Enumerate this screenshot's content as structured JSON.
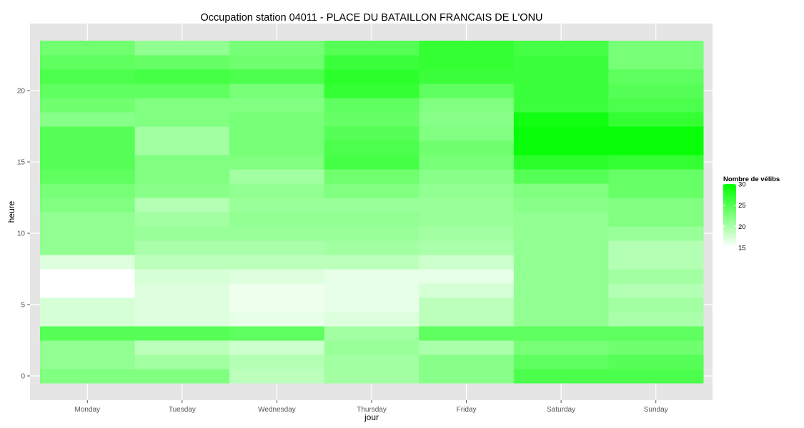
{
  "chart_data": {
    "type": "heatmap",
    "title": "Occupation station 04011 - PLACE DU BATAILLON FRANCAIS DE L'ONU",
    "xlabel": "jour",
    "ylabel": "heure",
    "categories": [
      "Monday",
      "Tuesday",
      "Wednesday",
      "Thursday",
      "Friday",
      "Saturday",
      "Sunday"
    ],
    "hours": [
      0,
      1,
      2,
      3,
      4,
      5,
      6,
      7,
      8,
      9,
      10,
      11,
      12,
      13,
      14,
      15,
      16,
      17,
      18,
      19,
      20,
      21,
      22,
      23
    ],
    "ylim": [
      -0.5,
      23.5
    ],
    "y_ticks": [
      0,
      5,
      10,
      15,
      20
    ],
    "grid": true,
    "legend": {
      "title": "Nombre de vélibs",
      "position": "right",
      "min": 15,
      "max": 30,
      "ticks": [
        15,
        20,
        25,
        30
      ],
      "low_color": "#ffffff",
      "high_color": "#00ff00"
    },
    "values": [
      [
        22.5,
        22.5,
        19.0,
        20.5,
        22.0,
        25.5,
        25.5
      ],
      [
        21.5,
        20.5,
        19.5,
        20.5,
        22.0,
        24.5,
        25.0
      ],
      [
        21.5,
        19.0,
        18.0,
        21.0,
        20.0,
        23.0,
        23.5
      ],
      [
        25.0,
        25.0,
        24.5,
        20.5,
        24.5,
        24.5,
        24.5
      ],
      [
        17.5,
        17.0,
        16.5,
        17.0,
        19.0,
        21.5,
        20.0
      ],
      [
        17.5,
        17.0,
        16.0,
        16.5,
        19.0,
        21.5,
        20.5
      ],
      [
        15.0,
        17.0,
        16.0,
        16.5,
        17.5,
        21.5,
        19.5
      ],
      [
        15.0,
        17.5,
        17.0,
        16.5,
        16.5,
        21.5,
        20.5
      ],
      [
        17.0,
        19.0,
        19.0,
        19.0,
        18.0,
        21.5,
        19.5
      ],
      [
        21.5,
        20.0,
        20.0,
        20.5,
        20.0,
        21.5,
        19.5
      ],
      [
        21.5,
        21.0,
        21.0,
        21.0,
        20.5,
        21.5,
        21.0
      ],
      [
        21.5,
        20.5,
        21.5,
        21.5,
        21.0,
        21.5,
        22.5
      ],
      [
        22.5,
        19.5,
        21.0,
        21.0,
        21.0,
        22.0,
        22.5
      ],
      [
        23.0,
        22.0,
        21.5,
        22.5,
        21.5,
        22.5,
        24.0
      ],
      [
        24.5,
        22.5,
        20.5,
        23.5,
        22.0,
        25.0,
        24.0
      ],
      [
        25.0,
        22.5,
        22.5,
        26.0,
        23.0,
        27.5,
        27.0
      ],
      [
        25.0,
        20.5,
        23.0,
        25.5,
        23.5,
        29.5,
        29.5
      ],
      [
        25.0,
        20.5,
        23.0,
        25.0,
        22.5,
        29.5,
        29.5
      ],
      [
        22.0,
        22.5,
        23.0,
        24.0,
        22.0,
        29.0,
        27.0
      ],
      [
        23.5,
        22.5,
        22.5,
        24.5,
        22.5,
        26.5,
        25.5
      ],
      [
        24.5,
        24.5,
        23.0,
        27.0,
        24.5,
        26.5,
        25.0
      ],
      [
        25.5,
        26.0,
        25.5,
        27.5,
        26.5,
        26.5,
        24.5
      ],
      [
        24.5,
        24.0,
        23.5,
        26.5,
        27.0,
        26.5,
        23.0
      ],
      [
        23.5,
        21.5,
        23.0,
        25.0,
        27.0,
        26.0,
        23.0
      ]
    ]
  }
}
